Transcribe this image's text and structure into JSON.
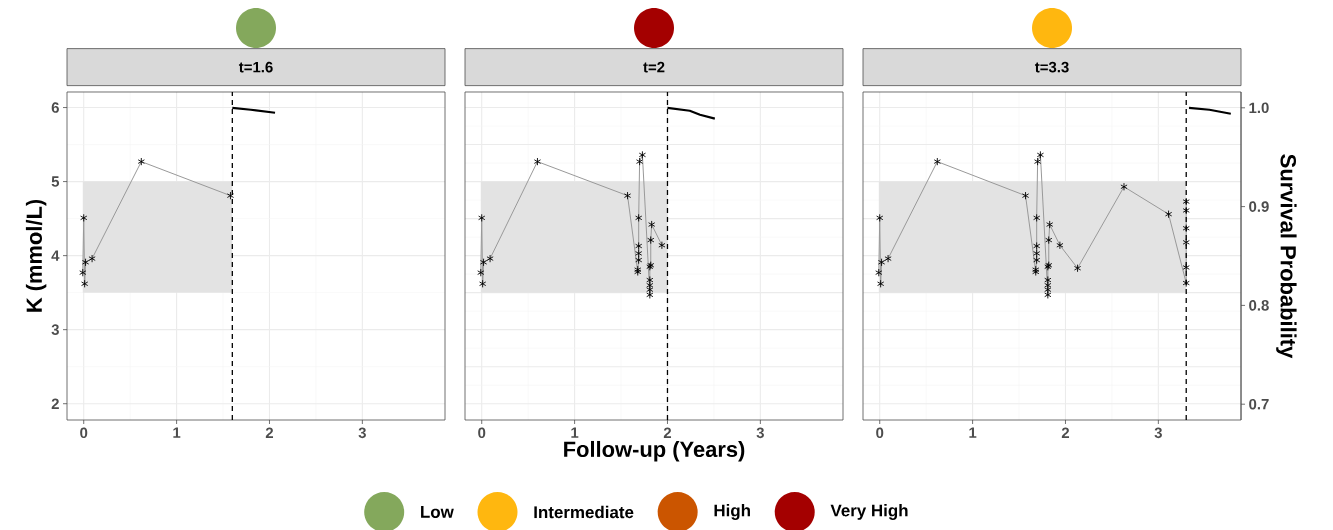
{
  "chart_data": [
    {
      "type": "line",
      "title": "t=1.6",
      "colors": [
        "#84a85c"
      ],
      "ylabel": "K (mmol/L)",
      "xlim": [
        -0.18,
        3.89
      ],
      "ylim": [
        1.78,
        6.21
      ],
      "y2lim": [
        0.684,
        1.016
      ],
      "xticks": [
        0,
        1,
        2,
        3
      ],
      "yticks": [
        2,
        3,
        4,
        5,
        6
      ],
      "grid": true,
      "tick_labels": "x,y",
      "ref_lines": [
        {
          "axis": "x",
          "value": 1.6,
          "color": "#000000",
          "line_style": "dashed"
        }
      ],
      "bands": [
        {
          "axis": "y",
          "from": 3.5,
          "to": 5,
          "color": "#e3e3e3"
        }
      ],
      "series": [
        {
          "type": "line",
          "color": "#999999",
          "marker": "cross",
          "x": [
            -0.01,
            0,
            0.01,
            0.02,
            0.09,
            0.62,
            1.58
          ],
          "values": [
            3.77,
            4.51,
            3.62,
            3.91,
            3.96,
            5.27,
            4.81
          ]
        },
        {
          "type": "line",
          "axis": "y2",
          "color": "#000000",
          "marker": "none",
          "x": [
            1.6,
            1.8,
            2.06
          ],
          "values": [
            1.0,
            0.998,
            0.995
          ]
        }
      ]
    },
    {
      "type": "line",
      "title": "t=2",
      "colors": [
        "#a40000"
      ],
      "xlabel": "Follow-up (Years)",
      "xlim": [
        -0.18,
        3.89
      ],
      "ylim": [
        1.78,
        6.21
      ],
      "y2lim": [
        0.684,
        1.016
      ],
      "xticks": [
        0,
        1,
        2,
        3
      ],
      "grid": true,
      "tick_labels": "x",
      "ref_lines": [
        {
          "axis": "x",
          "value": 2,
          "color": "#000000",
          "line_style": "dashed"
        }
      ],
      "bands": [
        {
          "axis": "y",
          "from": 3.5,
          "to": 5,
          "color": "#e3e3e3"
        }
      ],
      "series": [
        {
          "type": "line",
          "color": "#999999",
          "marker": "cross",
          "x": [
            -0.01,
            0,
            0.01,
            0.02,
            0.09,
            0.6,
            1.57,
            1.68,
            1.68,
            1.69,
            1.69,
            1.69,
            1.69,
            1.7,
            1.73,
            1.81,
            1.81,
            1.81,
            1.81,
            1.81,
            1.82,
            1.82,
            1.83,
            1.94
          ],
          "values": [
            3.77,
            4.51,
            3.62,
            3.91,
            3.96,
            5.27,
            4.81,
            3.78,
            3.81,
            3.94,
            4.03,
            4.13,
            4.51,
            5.27,
            5.36,
            3.47,
            3.54,
            3.6,
            3.67,
            3.85,
            3.87,
            4.21,
            4.42,
            4.14
          ]
        },
        {
          "type": "line",
          "axis": "y2",
          "color": "#000000",
          "marker": "none",
          "x": [
            2.0,
            2.24,
            2.35,
            2.51
          ],
          "values": [
            1.0,
            0.997,
            0.993,
            0.989
          ]
        }
      ]
    },
    {
      "type": "line",
      "title": "t=3.3",
      "colors": [
        "#ffb70f"
      ],
      "y2label": "Survival Probability",
      "xlim": [
        -0.18,
        3.89
      ],
      "ylim": [
        1.78,
        6.21
      ],
      "y2lim": [
        0.684,
        1.016
      ],
      "xticks": [
        0,
        1,
        2,
        3
      ],
      "y2ticks": [
        0.7,
        0.8,
        0.9,
        {
          "value": 1,
          "label": "1.0"
        }
      ],
      "grid": true,
      "tick_labels": "x,y2",
      "ref_lines": [
        {
          "axis": "x",
          "value": 3.3,
          "color": "#000000",
          "line_style": "dashed"
        }
      ],
      "bands": [
        {
          "axis": "y",
          "from": 3.5,
          "to": 5,
          "color": "#e3e3e3"
        }
      ],
      "series": [
        {
          "type": "line",
          "color": "#999999",
          "marker": "cross",
          "x": [
            -0.01,
            0,
            0.01,
            0.02,
            0.09,
            0.62,
            1.57,
            1.68,
            1.68,
            1.69,
            1.69,
            1.69,
            1.69,
            1.7,
            1.73,
            1.81,
            1.81,
            1.81,
            1.81,
            1.81,
            1.82,
            1.82,
            1.83,
            1.94,
            2.13,
            2.63,
            3.11,
            3.3,
            3.3,
            3.3,
            3.3,
            3.3,
            3.3
          ],
          "values": [
            3.77,
            4.51,
            3.62,
            3.91,
            3.96,
            5.27,
            4.81,
            3.78,
            3.81,
            3.94,
            4.03,
            4.13,
            4.51,
            5.27,
            5.36,
            3.47,
            3.54,
            3.6,
            3.67,
            3.85,
            3.87,
            4.21,
            4.42,
            4.14,
            3.83,
            4.93,
            4.56,
            3.63,
            3.84,
            4.18,
            4.37,
            4.61,
            4.73
          ]
        },
        {
          "type": "line",
          "axis": "y2",
          "color": "#000000",
          "marker": "none",
          "x": [
            3.33,
            3.55,
            3.78
          ],
          "values": [
            1.0,
            0.998,
            0.994
          ]
        }
      ]
    },
    {
      "type": "other",
      "categories": [
        "Low",
        "Intermediate",
        "High",
        "Very High"
      ],
      "colors": [
        "#84a85c",
        "#ffb70f",
        "#cb5500",
        "#a40000"
      ]
    }
  ]
}
